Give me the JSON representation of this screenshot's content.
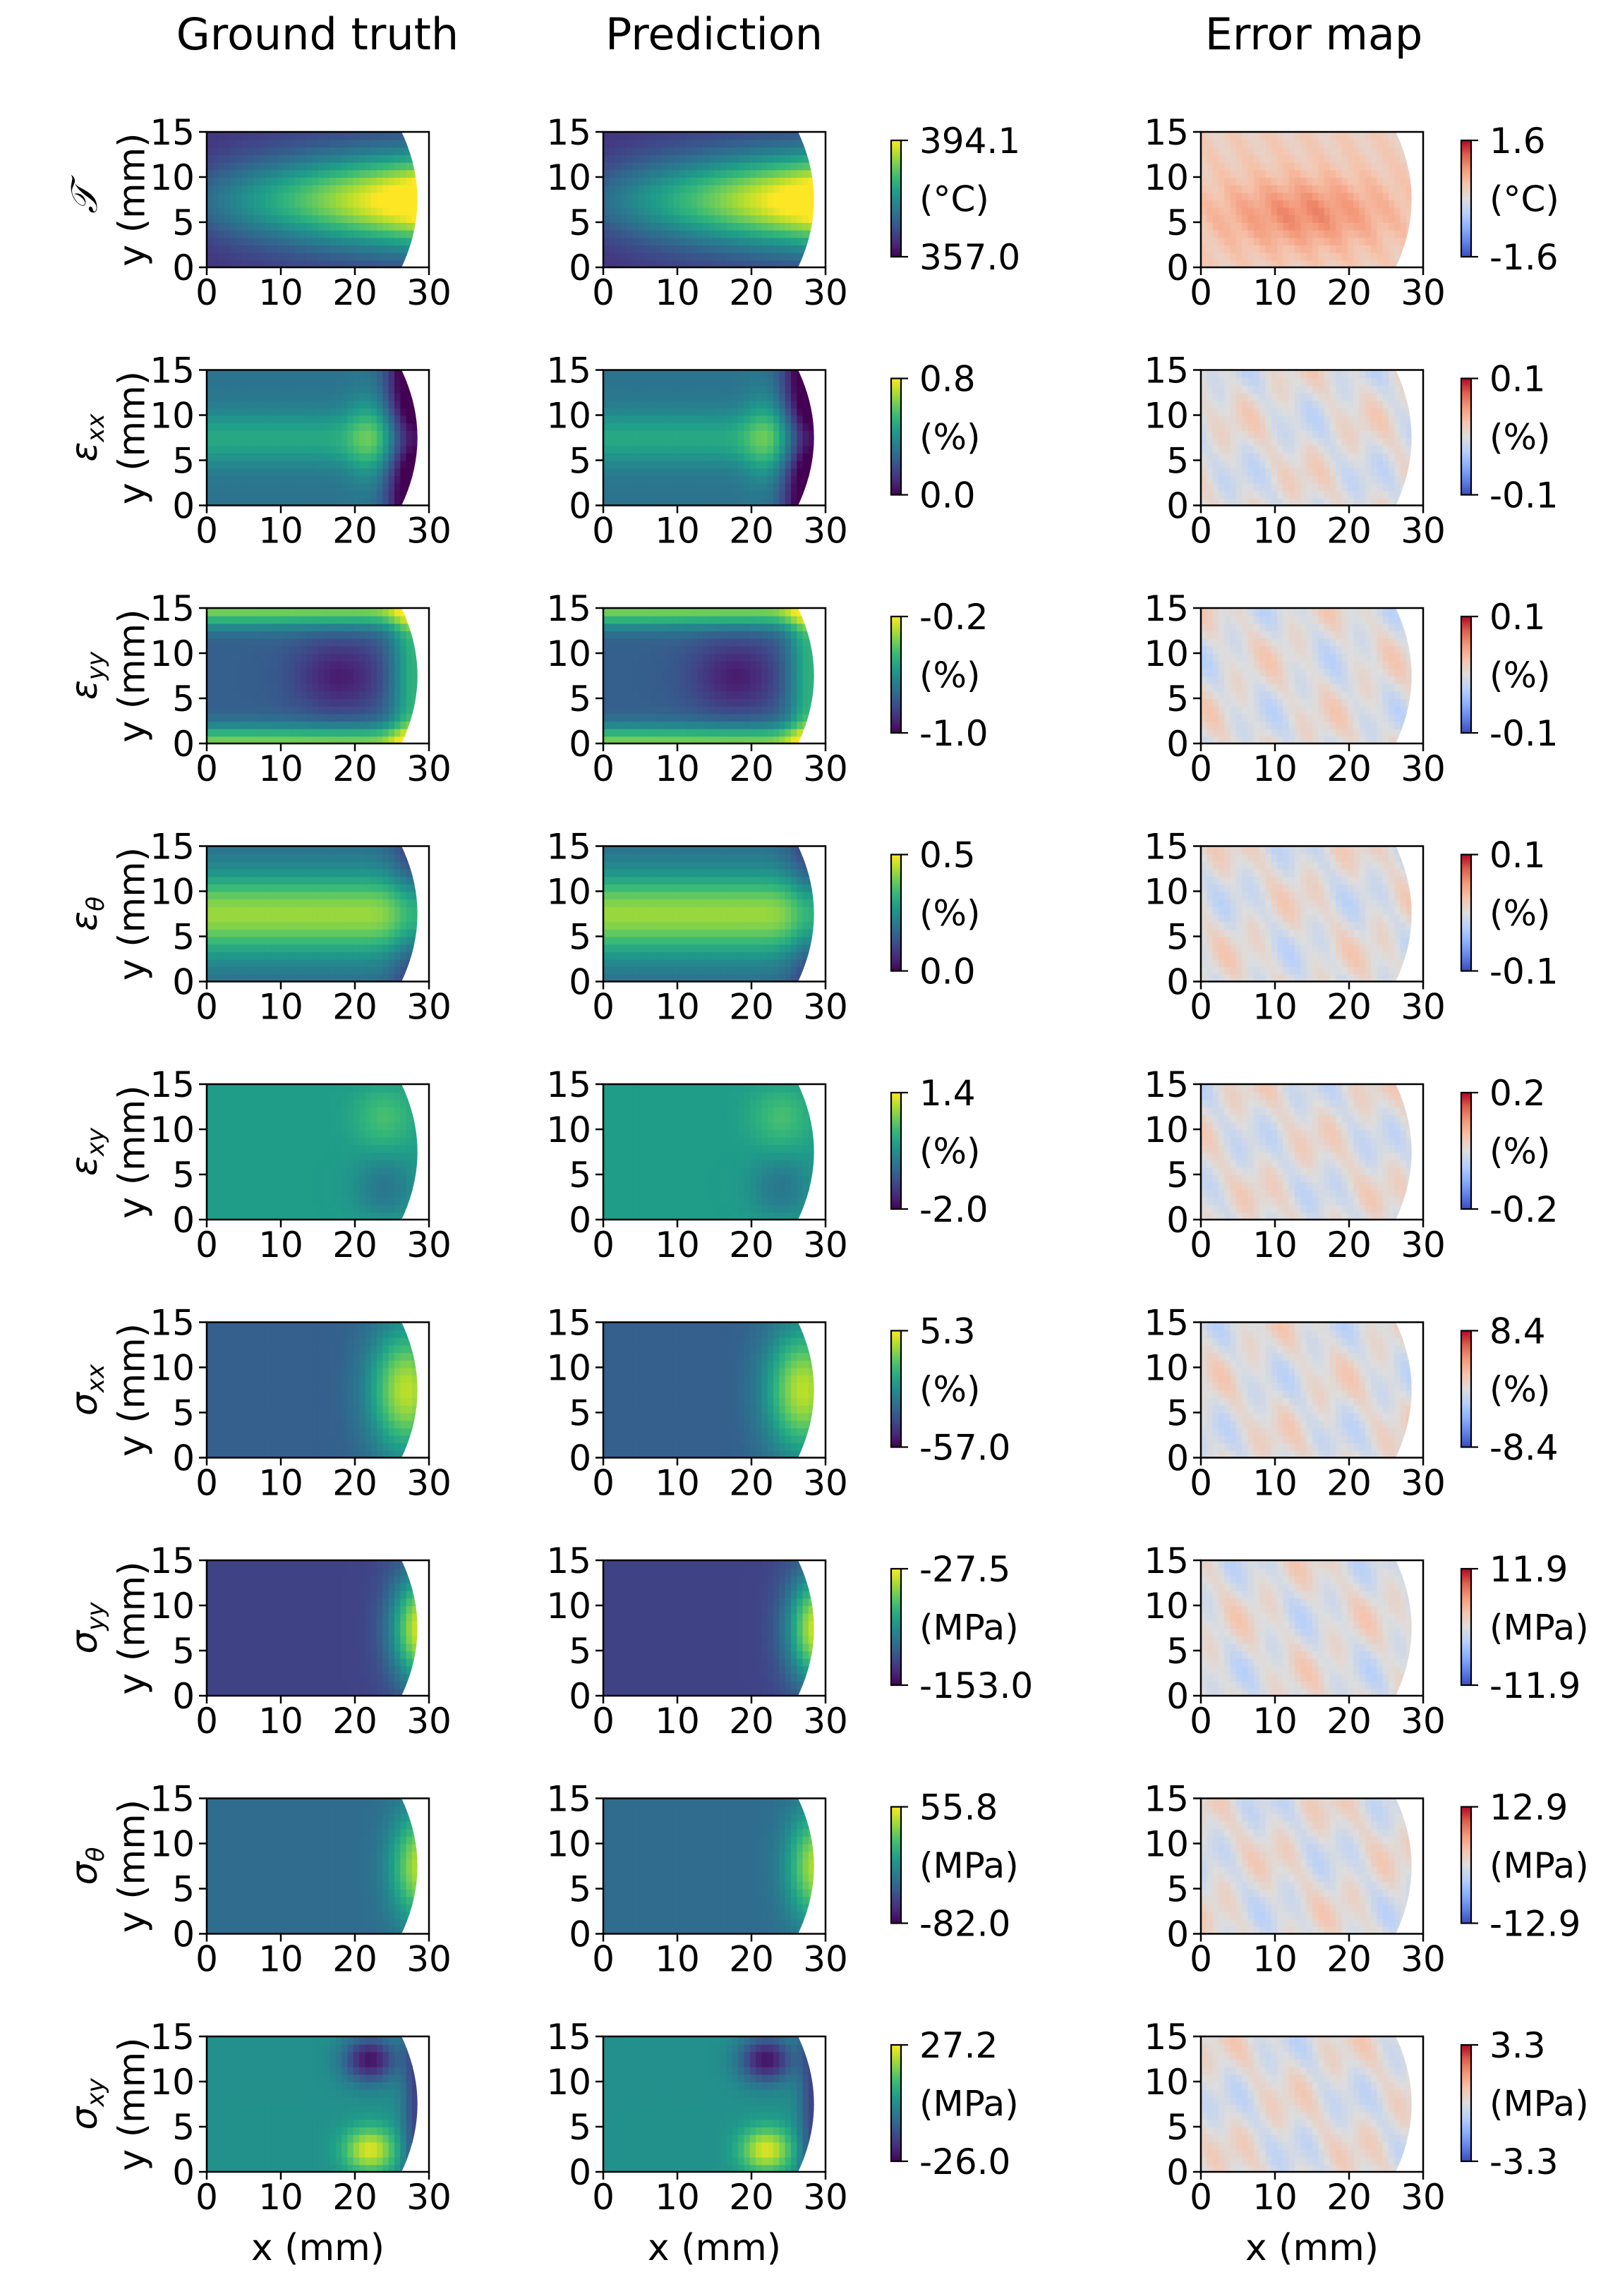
{
  "chart_data": {
    "type": "heatmap",
    "column_titles": [
      "Ground truth",
      "Prediction",
      "Error map"
    ],
    "x_label": "x (mm)",
    "y_label": "y (mm)",
    "x_range": [
      0,
      30
    ],
    "y_range": [
      0,
      15
    ],
    "x_ticks": [
      "0",
      "10",
      "20",
      "30"
    ],
    "y_ticks": [
      "0",
      "5",
      "10",
      "15"
    ],
    "colormaps": {
      "field": "viridis",
      "error": "coolwarm"
    },
    "rows": [
      {
        "symbol": "𝒯",
        "symbol_main": "𝒯",
        "symbol_sub": "",
        "pattern": "temp",
        "field_colorbar": {
          "max": "394.1",
          "unit": "(°C)",
          "min": "357.0"
        },
        "error_colorbar": {
          "max": "1.6",
          "unit": "(°C)",
          "min": "-1.6"
        }
      },
      {
        "symbol": "εxx",
        "symbol_main": "ε",
        "symbol_sub": "xx",
        "pattern": "exx",
        "field_colorbar": {
          "max": "0.8",
          "unit": "(%)",
          "min": "0.0"
        },
        "error_colorbar": {
          "max": "0.1",
          "unit": "(%)",
          "min": "-0.1"
        }
      },
      {
        "symbol": "εyy",
        "symbol_main": "ε",
        "symbol_sub": "yy",
        "pattern": "eyy",
        "field_colorbar": {
          "max": "-0.2",
          "unit": "(%)",
          "min": "-1.0"
        },
        "error_colorbar": {
          "max": "0.1",
          "unit": "(%)",
          "min": "-0.1"
        }
      },
      {
        "symbol": "εθ",
        "symbol_main": "ε",
        "symbol_sub": "θ",
        "pattern": "eth",
        "field_colorbar": {
          "max": "0.5",
          "unit": "(%)",
          "min": "0.0"
        },
        "error_colorbar": {
          "max": "0.1",
          "unit": "(%)",
          "min": "-0.1"
        }
      },
      {
        "symbol": "εxy",
        "symbol_main": "ε",
        "symbol_sub": "xy",
        "pattern": "exy",
        "field_colorbar": {
          "max": "1.4",
          "unit": "(%)",
          "min": "-2.0"
        },
        "error_colorbar": {
          "max": "0.2",
          "unit": "(%)",
          "min": "-0.2"
        }
      },
      {
        "symbol": "σxx",
        "symbol_main": "σ",
        "symbol_sub": "xx",
        "pattern": "sxx",
        "field_colorbar": {
          "max": "5.3",
          "unit": "(%)",
          "min": "-57.0"
        },
        "error_colorbar": {
          "max": "8.4",
          "unit": "(%)",
          "min": "-8.4"
        }
      },
      {
        "symbol": "σyy",
        "symbol_main": "σ",
        "symbol_sub": "yy",
        "pattern": "syy",
        "field_colorbar": {
          "max": "-27.5",
          "unit": "(MPa)",
          "min": "-153.0"
        },
        "error_colorbar": {
          "max": "11.9",
          "unit": "(MPa)",
          "min": "-11.9"
        }
      },
      {
        "symbol": "σθ",
        "symbol_main": "σ",
        "symbol_sub": "θ",
        "pattern": "sth",
        "field_colorbar": {
          "max": "55.8",
          "unit": "(MPa)",
          "min": "-82.0"
        },
        "error_colorbar": {
          "max": "12.9",
          "unit": "(MPa)",
          "min": "-12.9"
        }
      },
      {
        "symbol": "σxy",
        "symbol_main": "σ",
        "symbol_sub": "xy",
        "pattern": "sxy",
        "field_colorbar": {
          "max": "27.2",
          "unit": "(MPa)",
          "min": "-26.0"
        },
        "error_colorbar": {
          "max": "3.3",
          "unit": "(MPa)",
          "min": "-3.3"
        }
      }
    ]
  }
}
